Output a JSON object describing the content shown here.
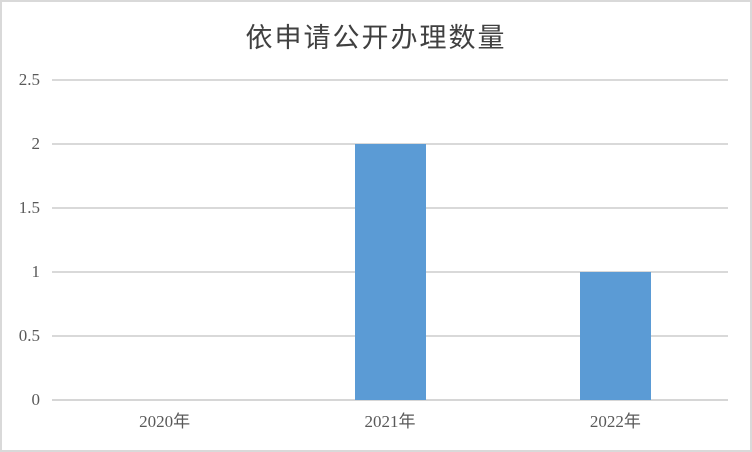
{
  "chart_data": {
    "type": "bar",
    "title": "依申请公开办理数量",
    "categories": [
      "2020年",
      "2021年",
      "2022年"
    ],
    "values": [
      0,
      2,
      1
    ],
    "series": [
      {
        "name": "依申请公开办理数量",
        "values": [
          0,
          2,
          1
        ]
      }
    ],
    "xlabel": "",
    "ylabel": "",
    "ylim": [
      0,
      2.5
    ],
    "ytick_step": 0.5,
    "ytick_labels": [
      "0",
      "0.5",
      "1",
      "1.5",
      "2",
      "2.5"
    ],
    "grid": "horizontal",
    "legend_position": "none"
  },
  "colors": {
    "bar": "#5B9BD5",
    "gridline": "#D9D9D9",
    "axis_line": "#D6D6D6",
    "frame_border": "#D9D9D9",
    "title_text": "#404040",
    "label_text": "#595959",
    "background": "#FFFFFF"
  }
}
